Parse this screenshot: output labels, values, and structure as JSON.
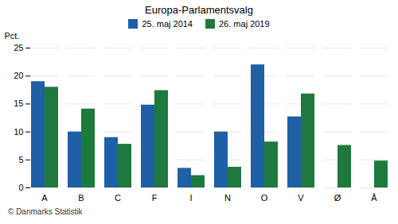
{
  "chart_data": {
    "type": "bar",
    "title": "Europa-Parlamentsvalg",
    "categories": [
      "A",
      "B",
      "C",
      "F",
      "I",
      "N",
      "O",
      "V",
      "Ø",
      "Å"
    ],
    "series": [
      {
        "name": "25. maj 2014",
        "color": "#1f5fa6",
        "values": [
          19.0,
          10.0,
          9.0,
          14.8,
          3.5,
          10.0,
          22.0,
          12.7,
          0.0,
          0.0
        ]
      },
      {
        "name": "26. maj 2019",
        "color": "#1e7a3c",
        "values": [
          18.0,
          14.1,
          7.8,
          17.4,
          2.2,
          3.7,
          8.2,
          16.8,
          7.6,
          4.8
        ]
      }
    ],
    "ylabel": "Pct.",
    "footer": "© Danmarks Statistik",
    "ylim": [
      0,
      25
    ],
    "yticks": [
      0,
      5,
      10,
      15,
      20,
      25
    ],
    "grid": true,
    "legend": "top"
  }
}
